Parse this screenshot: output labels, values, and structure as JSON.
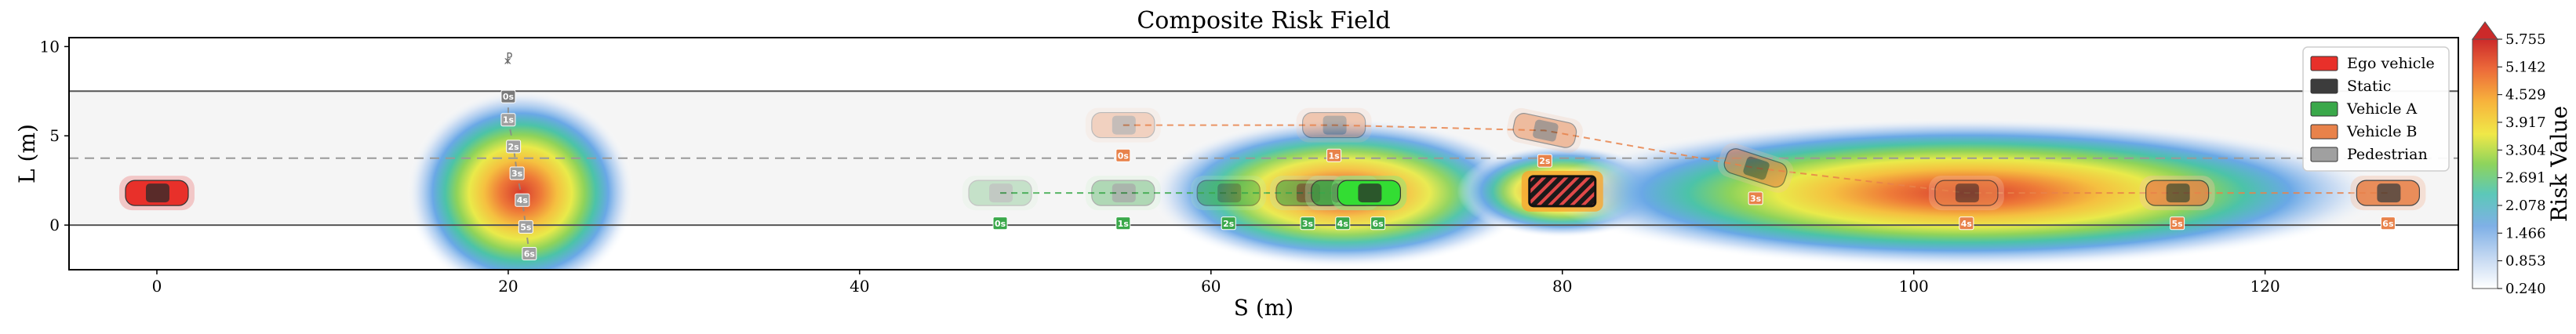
{
  "chart_data": {
    "type": "heatmap",
    "title": "Composite Risk Field",
    "xlabel": "S (m)",
    "ylabel": "L (m)",
    "xlim": [
      -5,
      131
    ],
    "ylim": [
      -2.5,
      10.5
    ],
    "xticks": [
      "0",
      "20",
      "40",
      "60",
      "80",
      "100",
      "120"
    ],
    "yticks": [
      "0",
      "5",
      "10"
    ],
    "lane_lines": {
      "road_bottom": 0,
      "center_dashed": 3.75,
      "road_top": 7.5
    },
    "colorbar": {
      "label": "Risk Value",
      "min": 0.24,
      "max": 5.755,
      "ticks": [
        "0.240",
        "0.853",
        "1.466",
        "2.078",
        "2.691",
        "3.304",
        "3.917",
        "4.529",
        "5.142",
        "5.755"
      ]
    },
    "legend": {
      "position": "top-right",
      "entries": [
        {
          "label": "Ego vehicle",
          "color": "#e8302a"
        },
        {
          "label": "Static",
          "color": "#3c3c3c"
        },
        {
          "label": "Vehicle A",
          "color": "#3aa84a"
        },
        {
          "label": "Vehicle B",
          "color": "#e8824a"
        },
        {
          "label": "Pedestrian",
          "color": "#a0a0a0"
        }
      ]
    },
    "ego_vehicle": {
      "s": 0,
      "l": 1.8
    },
    "static_obstacle": {
      "s": 80,
      "l": 1.9
    },
    "vehicle_a": {
      "trajectory": [
        {
          "label": "0s",
          "s": 48,
          "l": 1.8
        },
        {
          "label": "1s",
          "s": 55,
          "l": 1.8
        },
        {
          "label": "2s",
          "s": 61,
          "l": 1.8
        },
        {
          "label": "3s",
          "s": 65.5,
          "l": 1.8
        },
        {
          "label": "4s",
          "s": 67.5,
          "l": 1.8
        },
        {
          "label": "6s",
          "s": 69,
          "l": 1.8
        }
      ]
    },
    "vehicle_b": {
      "trajectory": [
        {
          "label": "0s",
          "s": 55,
          "l": 5.6
        },
        {
          "label": "1s",
          "s": 67,
          "l": 5.6
        },
        {
          "label": "2s",
          "s": 79,
          "l": 5.3
        },
        {
          "label": "3s",
          "s": 91,
          "l": 3.2
        },
        {
          "label": "4s",
          "s": 103,
          "l": 1.8
        },
        {
          "label": "5s",
          "s": 115,
          "l": 1.8
        },
        {
          "label": "6s",
          "s": 127,
          "l": 1.8
        }
      ]
    },
    "pedestrian": {
      "trajectory": [
        {
          "label": "0s",
          "s": 20,
          "l": 7.2
        },
        {
          "label": "1s",
          "s": 20,
          "l": 5.9
        },
        {
          "label": "2s",
          "s": 20.3,
          "l": 4.4
        },
        {
          "label": "3s",
          "s": 20.5,
          "l": 2.9
        },
        {
          "label": "4s",
          "s": 20.8,
          "l": 1.4
        },
        {
          "label": "5s",
          "s": 21,
          "l": -0.1
        },
        {
          "label": "6s",
          "s": 21.2,
          "l": -1.6
        }
      ]
    },
    "risk_fields": [
      {
        "source": "pedestrian",
        "s": 20.7,
        "l": 1.8,
        "peak": 5.7
      },
      {
        "source": "vehicle_a",
        "s": 67.5,
        "l": 1.8,
        "peak": 4.8
      },
      {
        "source": "static",
        "s": 80,
        "l": 1.9,
        "peak": 4.3
      },
      {
        "source": "vehicle_b",
        "s": 103,
        "l": 1.8,
        "peak": 5.6
      }
    ]
  }
}
